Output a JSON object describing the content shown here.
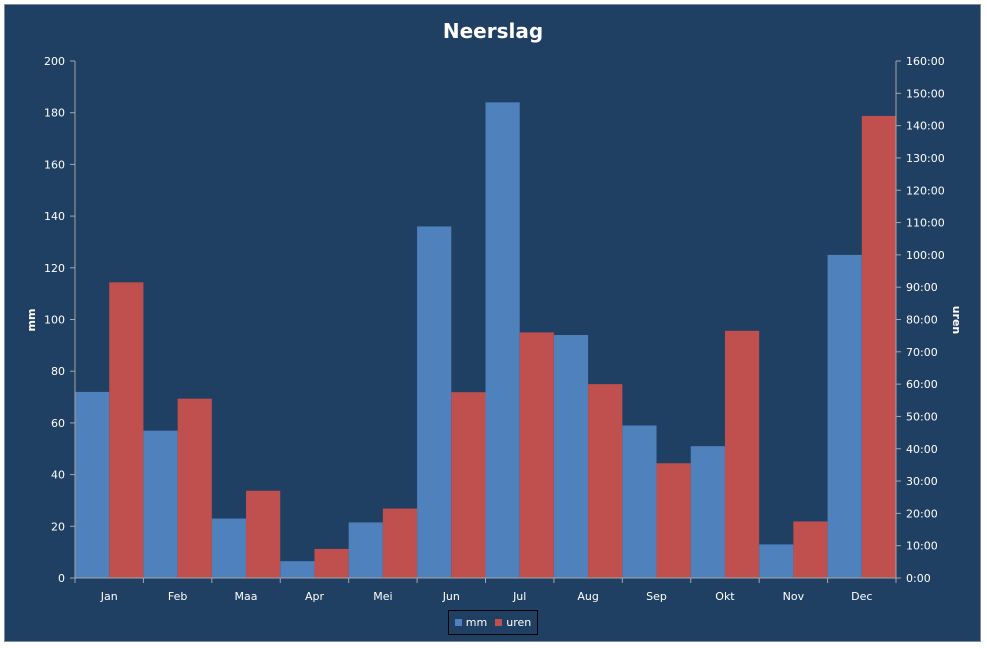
{
  "chart_data": {
    "type": "bar",
    "title": "Neerslag",
    "categories": [
      "Jan",
      "Feb",
      "Maa",
      "Apr",
      "Mei",
      "Jun",
      "Jul",
      "Aug",
      "Sep",
      "Okt",
      "Nov",
      "Dec"
    ],
    "series": [
      {
        "name": "mm",
        "axis": "left",
        "color": "#4f81bd",
        "values": [
          72,
          57,
          23,
          6.5,
          21.5,
          136,
          184,
          94,
          59,
          51,
          13,
          125
        ]
      },
      {
        "name": "uren",
        "axis": "right",
        "color": "#c0504d",
        "values": [
          91.5,
          55.5,
          27,
          9,
          21.5,
          57.5,
          76,
          60,
          35.5,
          76.5,
          17.5,
          143
        ]
      }
    ],
    "ylabel": "mm",
    "ylim": [
      0,
      200
    ],
    "yticks": [
      "0",
      "20",
      "40",
      "60",
      "80",
      "100",
      "120",
      "140",
      "160",
      "180",
      "200"
    ],
    "y2label": "uren",
    "y2lim": [
      0,
      160
    ],
    "y2ticks": [
      "0:00",
      "10:00",
      "20:00",
      "30:00",
      "40:00",
      "50:00",
      "60:00",
      "70:00",
      "80:00",
      "90:00",
      "100:00",
      "110:00",
      "120:00",
      "130:00",
      "140:00",
      "150:00",
      "160:00"
    ],
    "grid": false,
    "legend_position": "bottom"
  },
  "colors": {
    "background": "#1f3f63",
    "text": "#ffffff",
    "axis": "#a6a6a6"
  }
}
